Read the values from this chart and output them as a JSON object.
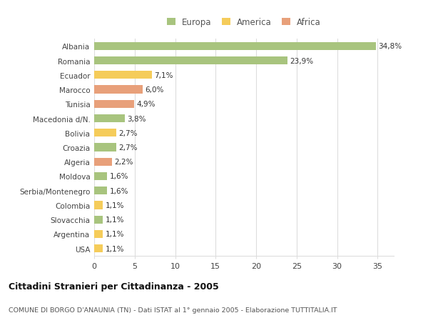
{
  "categories": [
    "Albania",
    "Romania",
    "Ecuador",
    "Marocco",
    "Tunisia",
    "Macedonia d/N.",
    "Bolivia",
    "Croazia",
    "Algeria",
    "Moldova",
    "Serbia/Montenegro",
    "Colombia",
    "Slovacchia",
    "Argentina",
    "USA"
  ],
  "values": [
    34.8,
    23.9,
    7.1,
    6.0,
    4.9,
    3.8,
    2.7,
    2.7,
    2.2,
    1.6,
    1.6,
    1.1,
    1.1,
    1.1,
    1.1
  ],
  "labels": [
    "34,8%",
    "23,9%",
    "7,1%",
    "6,0%",
    "4,9%",
    "3,8%",
    "2,7%",
    "2,7%",
    "2,2%",
    "1,6%",
    "1,6%",
    "1,1%",
    "1,1%",
    "1,1%",
    "1,1%"
  ],
  "continents": [
    "Europa",
    "Europa",
    "America",
    "Africa",
    "Africa",
    "Europa",
    "America",
    "Europa",
    "Africa",
    "Europa",
    "Europa",
    "America",
    "Europa",
    "America",
    "America"
  ],
  "colors": {
    "Europa": "#a8c47e",
    "America": "#f5cc5a",
    "Africa": "#e8a07a"
  },
  "xlim": [
    0,
    37
  ],
  "xticks": [
    0,
    5,
    10,
    15,
    20,
    25,
    30,
    35
  ],
  "title": "Cittadini Stranieri per Cittadinanza - 2005",
  "subtitle": "COMUNE DI BORGO D'ANAUNIA (TN) - Dati ISTAT al 1° gennaio 2005 - Elaborazione TUTTITALIA.IT",
  "background_color": "#ffffff",
  "grid_color": "#dddddd",
  "bar_height": 0.55
}
